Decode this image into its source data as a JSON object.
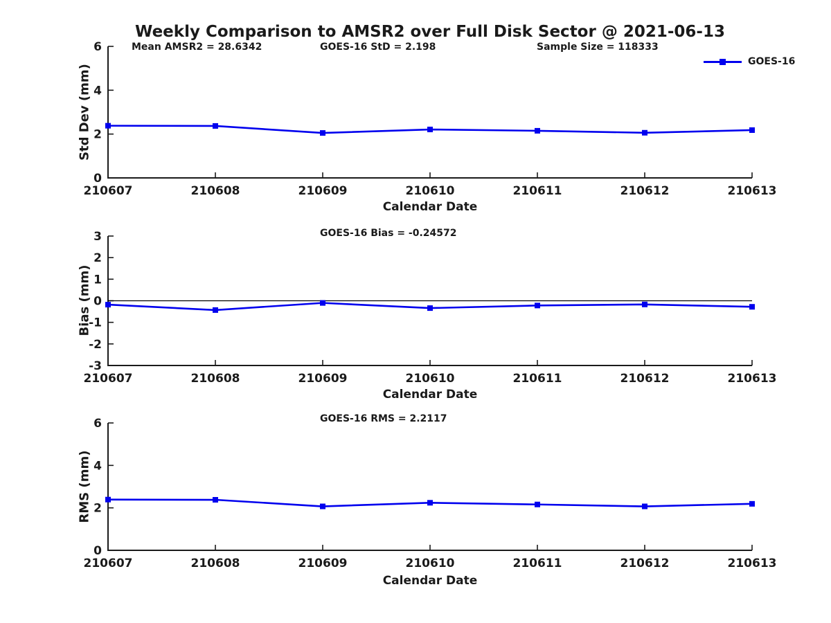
{
  "title": "Weekly Comparison to AMSR2 over Full Disk Sector @ 2021-06-13",
  "legend": {
    "label": "GOES-16",
    "color": "#0000ee"
  },
  "chart_data": {
    "type": "line",
    "series_name": "GOES-16",
    "line_color": "#0000ee",
    "marker": "square",
    "categories": [
      "210607",
      "210608",
      "210609",
      "210610",
      "210611",
      "210612",
      "210613"
    ],
    "subplots": [
      {
        "name": "std-dev",
        "ylabel": "Std Dev (mm)",
        "xlabel": "Calendar Date",
        "ylim": [
          0,
          6
        ],
        "yticks": [
          6,
          4,
          2,
          0
        ],
        "values": [
          2.38,
          2.37,
          2.05,
          2.21,
          2.15,
          2.06,
          2.18
        ],
        "annotations": [
          "Mean AMSR2 = 28.6342",
          "GOES-16 StD = 2.198",
          "Sample Size = 118333"
        ],
        "zero_line": false
      },
      {
        "name": "bias",
        "ylabel": "Bias (mm)",
        "xlabel": "Calendar Date",
        "ylim": [
          -3,
          3
        ],
        "yticks": [
          3,
          2,
          1,
          0,
          -1,
          -2,
          -3
        ],
        "values": [
          -0.18,
          -0.43,
          -0.1,
          -0.34,
          -0.22,
          -0.17,
          -0.28
        ],
        "annotations": [
          "GOES-16 Bias  = -0.24572"
        ],
        "zero_line": true
      },
      {
        "name": "rms",
        "ylabel": "RMS (mm)",
        "xlabel": "Calendar Date",
        "ylim": [
          0,
          6
        ],
        "yticks": [
          6,
          4,
          2,
          0
        ],
        "values": [
          2.39,
          2.38,
          2.07,
          2.24,
          2.16,
          2.07,
          2.19
        ],
        "annotations": [
          "GOES-16 RMS = 2.2117"
        ],
        "zero_line": false
      }
    ],
    "grid": false,
    "legend_position": "top-right"
  }
}
